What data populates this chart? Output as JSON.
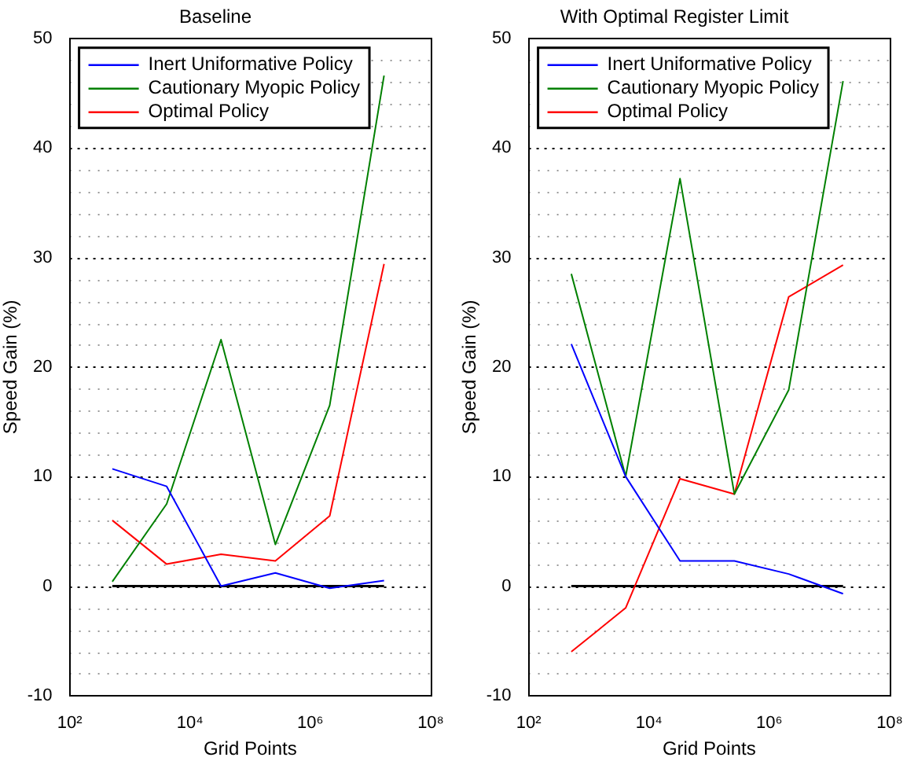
{
  "chart_data": [
    {
      "type": "line",
      "title": "Baseline",
      "xlabel": "Grid Points",
      "ylabel": "Speed Gain (%)",
      "log": "x",
      "grid": "y",
      "legend": "top left",
      "x": [
        512,
        4096,
        32768,
        262144,
        2097152,
        16777216
      ],
      "xlim": [
        100,
        100000000
      ],
      "xticks": [
        {
          "value": 100,
          "label": "10²"
        },
        {
          "value": 10000,
          "label": "10⁴"
        },
        {
          "value": 1000000,
          "label": "10⁶"
        },
        {
          "value": 100000000,
          "label": "10⁸"
        }
      ],
      "ylim": [
        -10,
        50
      ],
      "yticks": [
        -10,
        {
          "value": -8,
          "label": null
        },
        {
          "value": -6,
          "label": null
        },
        {
          "value": -4,
          "label": null
        },
        {
          "value": -2,
          "label": null
        },
        0,
        {
          "value": 2,
          "label": null
        },
        {
          "value": 4,
          "label": null
        },
        {
          "value": 6,
          "label": null
        },
        {
          "value": 8,
          "label": null
        },
        10,
        {
          "value": 12,
          "label": null
        },
        {
          "value": 14,
          "label": null
        },
        {
          "value": 16,
          "label": null
        },
        {
          "value": 18,
          "label": null
        },
        20,
        {
          "value": 22,
          "label": null
        },
        {
          "value": 24,
          "label": null
        },
        {
          "value": 26,
          "label": null
        },
        {
          "value": 28,
          "label": null
        },
        30,
        {
          "value": 32,
          "label": null
        },
        {
          "value": 34,
          "label": null
        },
        {
          "value": 36,
          "label": null
        },
        {
          "value": 38,
          "label": null
        },
        40,
        {
          "value": 42,
          "label": null
        },
        {
          "value": 44,
          "label": null
        },
        {
          "value": 46,
          "label": null
        },
        {
          "value": 48,
          "label": null
        },
        50
      ],
      "ref_lines": [
        {
          "axis": "y",
          "value": 0,
          "color": "#000000"
        }
      ],
      "series": [
        {
          "name": "Inert Uniformative Policy",
          "color": "#0000ff",
          "values": [
            10.7,
            9.1,
            0,
            1.2,
            -0.2,
            0.5
          ]
        },
        {
          "name": "Cautionary Myopic Policy",
          "color": "#008000",
          "values": [
            0.4,
            7.5,
            22.5,
            3.8,
            16.5,
            46.6
          ]
        },
        {
          "name": "Optimal Policy",
          "color": "#ff0000",
          "values": [
            6.0,
            2.0,
            2.9,
            2.3,
            6.4,
            29.4
          ]
        }
      ]
    },
    {
      "type": "line",
      "title": "With Optimal Register Limit",
      "xlabel": "Grid Points",
      "ylabel": "Speed Gain (%)",
      "log": "x",
      "grid": "y",
      "legend": "top left",
      "x": [
        512,
        4096,
        32768,
        262144,
        2097152,
        16777216
      ],
      "xlim": [
        100,
        100000000
      ],
      "xticks": [
        {
          "value": 100,
          "label": "10²"
        },
        {
          "value": 10000,
          "label": "10⁴"
        },
        {
          "value": 1000000,
          "label": "10⁶"
        },
        {
          "value": 100000000,
          "label": "10⁸"
        }
      ],
      "ylim": [
        -10,
        50
      ],
      "yticks": [
        -10,
        {
          "value": -8,
          "label": null
        },
        {
          "value": -6,
          "label": null
        },
        {
          "value": -4,
          "label": null
        },
        {
          "value": -2,
          "label": null
        },
        0,
        {
          "value": 2,
          "label": null
        },
        {
          "value": 4,
          "label": null
        },
        {
          "value": 6,
          "label": null
        },
        {
          "value": 8,
          "label": null
        },
        10,
        {
          "value": 12,
          "label": null
        },
        {
          "value": 14,
          "label": null
        },
        {
          "value": 16,
          "label": null
        },
        {
          "value": 18,
          "label": null
        },
        20,
        {
          "value": 22,
          "label": null
        },
        {
          "value": 24,
          "label": null
        },
        {
          "value": 26,
          "label": null
        },
        {
          "value": 28,
          "label": null
        },
        30,
        {
          "value": 32,
          "label": null
        },
        {
          "value": 34,
          "label": null
        },
        {
          "value": 36,
          "label": null
        },
        {
          "value": 38,
          "label": null
        },
        40,
        {
          "value": 42,
          "label": null
        },
        {
          "value": 44,
          "label": null
        },
        {
          "value": 46,
          "label": null
        },
        {
          "value": 48,
          "label": null
        },
        50
      ],
      "ref_lines": [
        {
          "axis": "y",
          "value": 0,
          "color": "#000000"
        }
      ],
      "series": [
        {
          "name": "Inert Uniformative Policy",
          "color": "#0000ff",
          "values": [
            22.1,
            10,
            2.3,
            2.3,
            1.1,
            -0.7
          ]
        },
        {
          "name": "Cautionary Myopic Policy",
          "color": "#008000",
          "values": [
            28.5,
            10,
            37.2,
            8.4,
            17.9,
            46.1
          ]
        },
        {
          "name": "Optimal Policy",
          "color": "#ff0000",
          "values": [
            -6.0,
            -2.0,
            9.8,
            8.4,
            26.4,
            29.3
          ]
        }
      ]
    }
  ]
}
